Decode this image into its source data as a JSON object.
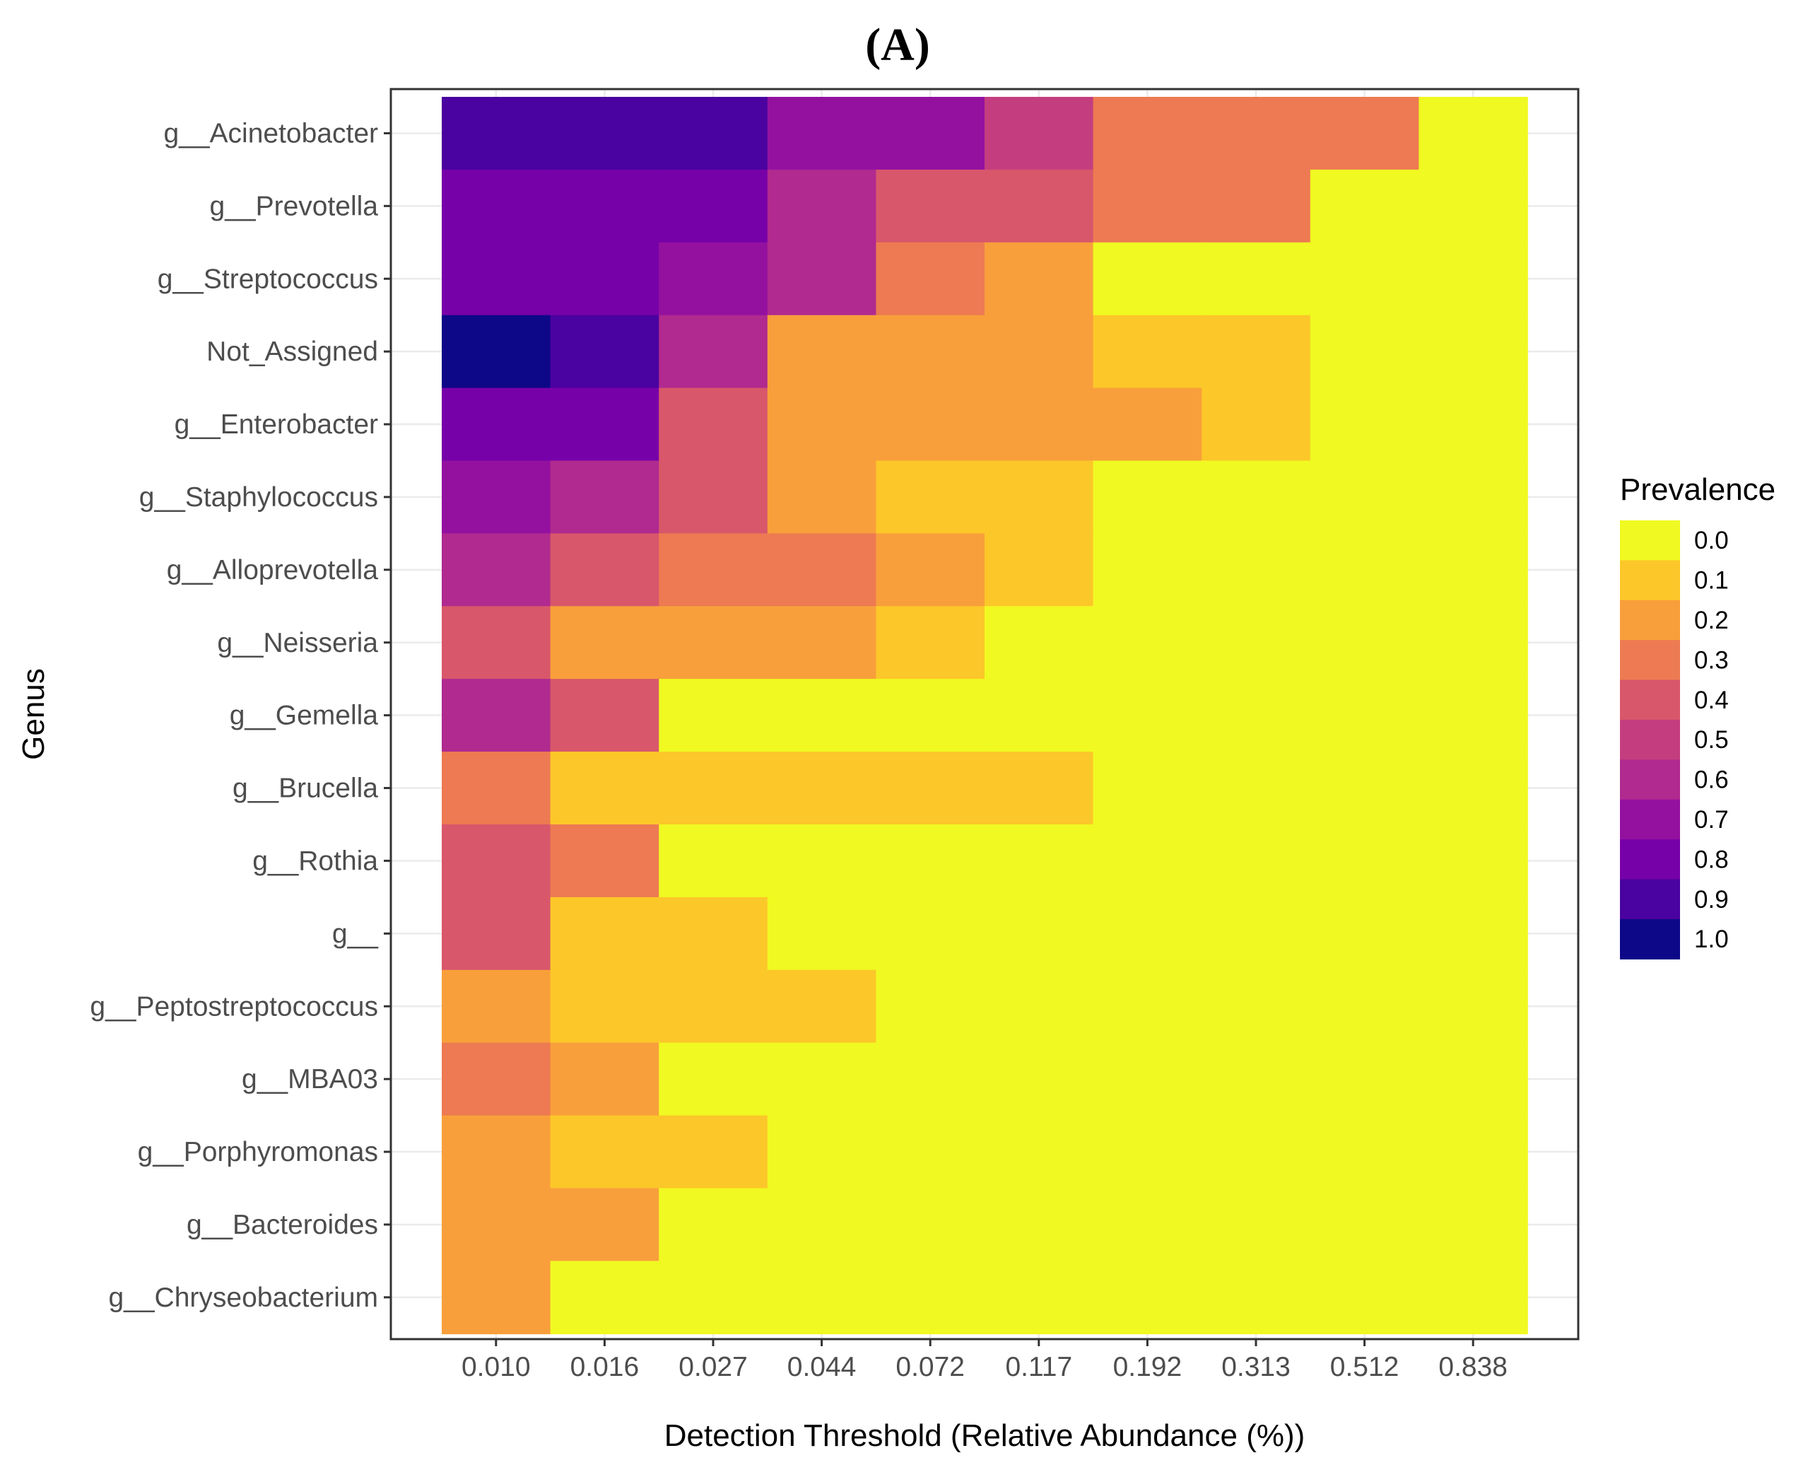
{
  "chart_data": {
    "type": "heatmap",
    "panel_label": "(A)",
    "title": "",
    "xlabel": "Detection Threshold (Relative Abundance (%))",
    "ylabel": "Genus",
    "x_ticks": [
      "0.010",
      "0.016",
      "0.027",
      "0.044",
      "0.072",
      "0.117",
      "0.192",
      "0.313",
      "0.512",
      "0.838"
    ],
    "columns": 10,
    "genera": [
      "g__Acinetobacter",
      "g__Prevotella",
      "g__Streptococcus",
      "Not_Assigned",
      "g__Enterobacter",
      "g__Staphylococcus",
      "g__Alloprevotella",
      "g__Neisseria",
      "g__Gemella",
      "g__Brucella",
      "g__Rothia",
      "g__",
      "g__Peptostreptococcus",
      "g__MBA03",
      "g__Porphyromonas",
      "g__Bacteroides",
      "g__Chryseobacterium"
    ],
    "prevalence": [
      [
        0.9,
        0.9,
        0.9,
        0.7,
        0.7,
        0.5,
        0.3,
        0.3,
        0.3,
        0.0
      ],
      [
        0.8,
        0.8,
        0.8,
        0.6,
        0.4,
        0.4,
        0.3,
        0.3,
        0.0,
        0.0
      ],
      [
        0.8,
        0.8,
        0.7,
        0.6,
        0.3,
        0.2,
        0.0,
        0.0,
        0.0,
        0.0
      ],
      [
        1.0,
        0.9,
        0.6,
        0.2,
        0.2,
        0.2,
        0.1,
        0.1,
        0.0,
        0.0
      ],
      [
        0.8,
        0.8,
        0.4,
        0.2,
        0.2,
        0.2,
        0.2,
        0.1,
        0.0,
        0.0
      ],
      [
        0.7,
        0.6,
        0.4,
        0.2,
        0.1,
        0.1,
        0.0,
        0.0,
        0.0,
        0.0
      ],
      [
        0.6,
        0.4,
        0.3,
        0.3,
        0.2,
        0.1,
        0.0,
        0.0,
        0.0,
        0.0
      ],
      [
        0.4,
        0.2,
        0.2,
        0.2,
        0.1,
        0.0,
        0.0,
        0.0,
        0.0,
        0.0
      ],
      [
        0.6,
        0.4,
        0.0,
        0.0,
        0.0,
        0.0,
        0.0,
        0.0,
        0.0,
        0.0
      ],
      [
        0.3,
        0.1,
        0.1,
        0.1,
        0.1,
        0.1,
        0.0,
        0.0,
        0.0,
        0.0
      ],
      [
        0.4,
        0.3,
        0.0,
        0.0,
        0.0,
        0.0,
        0.0,
        0.0,
        0.0,
        0.0
      ],
      [
        0.4,
        0.1,
        0.1,
        0.0,
        0.0,
        0.0,
        0.0,
        0.0,
        0.0,
        0.0
      ],
      [
        0.2,
        0.1,
        0.1,
        0.1,
        0.0,
        0.0,
        0.0,
        0.0,
        0.0,
        0.0
      ],
      [
        0.3,
        0.2,
        0.0,
        0.0,
        0.0,
        0.0,
        0.0,
        0.0,
        0.0,
        0.0
      ],
      [
        0.2,
        0.1,
        0.1,
        0.0,
        0.0,
        0.0,
        0.0,
        0.0,
        0.0,
        0.0
      ],
      [
        0.2,
        0.2,
        0.0,
        0.0,
        0.0,
        0.0,
        0.0,
        0.0,
        0.0,
        0.0
      ],
      [
        0.2,
        0.0,
        0.0,
        0.0,
        0.0,
        0.0,
        0.0,
        0.0,
        0.0,
        0.0
      ]
    ],
    "legend": {
      "title": "Prevalence",
      "position": "right",
      "levels": [
        "0.0",
        "0.1",
        "0.2",
        "0.3",
        "0.4",
        "0.5",
        "0.6",
        "0.7",
        "0.8",
        "0.9",
        "1.0"
      ],
      "colors": [
        "#f0f921",
        "#fcc729",
        "#f89f3b",
        "#ed7a52",
        "#d8576b",
        "#c43e7f",
        "#b02a8f",
        "#9411a0",
        "#7701a8",
        "#4a02a0",
        "#0d0887"
      ]
    },
    "grid": true
  }
}
